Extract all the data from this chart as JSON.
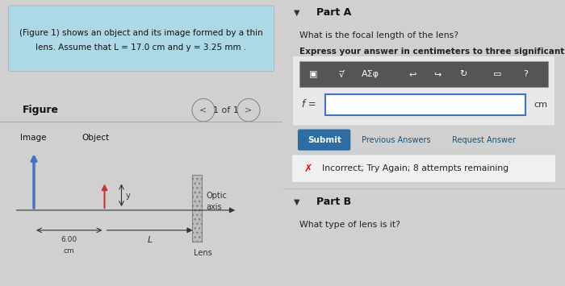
{
  "bg_color": "#d0d0d0",
  "left_panel_bg": "#d8d8d8",
  "right_panel_bg": "#d8d8d8",
  "header_box_color": "#add8e6",
  "header_text_line1": "(Figure 1) shows an object and its image formed by a thin",
  "header_text_line2": "lens. Assume that L = 17.0 cm and y = 3.25 mm .",
  "figure_label": "Figure",
  "nav_text": "1 of 1",
  "image_label": "Image",
  "object_label": "Object",
  "y_label": "y",
  "dist_label_line1": "6.00",
  "dist_label_line2": "cm",
  "L_label": "L",
  "optic_label_line1": "Optic",
  "optic_label_line2": "axis",
  "lens_label": "Lens",
  "part_a_title": "Part A",
  "part_a_q1": "What is the focal length of the lens?",
  "part_a_q2": "Express your answer in centimeters to three significant figures.",
  "f_label": "f =",
  "cm_label": "cm",
  "submit_text": "Submit",
  "prev_ans_text": "Previous Answers",
  "req_ans_text": "Request Answer",
  "incorrect_text": "Incorrect; Try Again; 8 attempts remaining",
  "part_b_title": "Part B",
  "part_b_q": "What type of lens is it?",
  "submit_bg": "#2e6da4",
  "submit_fg": "#ffffff",
  "image_arrow_color": "#4472c4",
  "object_arrow_color": "#c0392b",
  "axis_color": "#333333",
  "divider_color": "#aaaaaa",
  "toolbar_icons": [
    "▣",
    "√̅",
    "AΣφ",
    "↩",
    "↪",
    "↻",
    "▭",
    "?"
  ]
}
